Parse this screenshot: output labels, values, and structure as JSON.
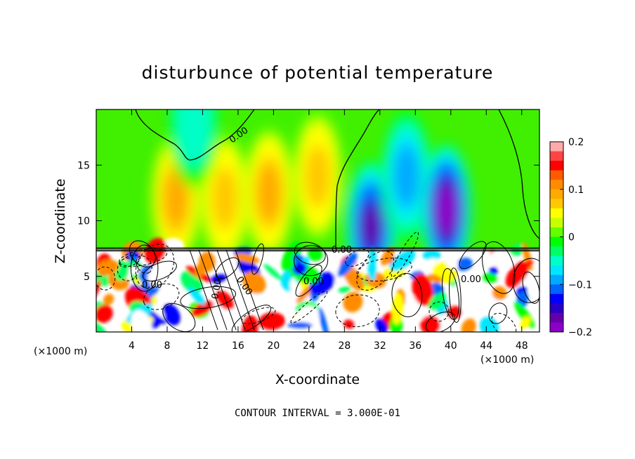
{
  "chart_data": {
    "type": "heatmap",
    "title": "disturbunce of potential temperature",
    "xlabel": "X-coordinate",
    "ylabel": "Z-coordinate",
    "x_unit_left": "(×1000 m)",
    "x_unit_right": "(×1000 m)",
    "footnote": "CONTOUR INTERVAL = 3.000E-01",
    "xlim": [
      0,
      50
    ],
    "ylim": [
      0,
      20
    ],
    "xticks": [
      "4",
      "8",
      "12",
      "16",
      "20",
      "24",
      "28",
      "32",
      "36",
      "40",
      "44",
      "48"
    ],
    "yticks": [
      "5",
      "10",
      "15"
    ],
    "colorbar": {
      "min": -0.2,
      "max": 0.2,
      "tick_labels": [
        "0.2",
        "0.1",
        "0",
        "−0.1",
        "−0.2"
      ],
      "colors": [
        "#ffaaaa",
        "#ff4444",
        "#ff0000",
        "#ff5a00",
        "#ff8c00",
        "#ffaa00",
        "#ffc800",
        "#ffff00",
        "#c8ff00",
        "#64ff00",
        "#00ff00",
        "#00ff64",
        "#00ffc8",
        "#00e6ff",
        "#00aaff",
        "#0064ff",
        "#0000ff",
        "#2800c8",
        "#6400aa",
        "#8c00c8"
      ]
    },
    "contour_labels": [
      "0.00",
      "0.00",
      "0.00",
      "0.00",
      "0.00",
      "0.00",
      "0.00"
    ],
    "upper_layer": {
      "z_range": [
        7.5,
        20
      ],
      "anomalies": [
        {
          "x": 9,
          "z": 12,
          "value": 0.1
        },
        {
          "x": 14.5,
          "z": 12,
          "value": 0.08
        },
        {
          "x": 19.5,
          "z": 12.5,
          "value": 0.09
        },
        {
          "x": 25,
          "z": 14,
          "value": 0.08
        },
        {
          "x": 31,
          "z": 9.5,
          "value": -0.16
        },
        {
          "x": 35,
          "z": 14,
          "value": -0.08
        },
        {
          "x": 39.5,
          "z": 11,
          "value": -0.2
        },
        {
          "x": 11,
          "z": 19,
          "value": -0.04
        }
      ]
    },
    "lower_layer": {
      "z_range": [
        0,
        7.5
      ],
      "description_values": [
        -0.2,
        0.2
      ]
    }
  }
}
